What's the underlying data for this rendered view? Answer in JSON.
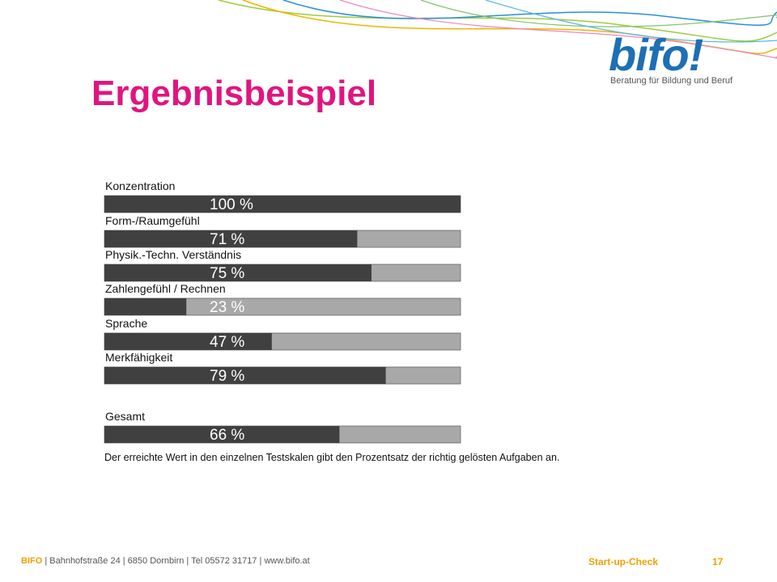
{
  "slide": {
    "title": "Ergebnisbeispiel",
    "title_color": "#e0157f"
  },
  "logo": {
    "word": "bifo!",
    "tagline": "Beratung für Bildung und Beruf",
    "color": "#1e6fb5"
  },
  "chart_data": {
    "type": "bar",
    "orientation": "horizontal",
    "categories": [
      "Konzentration",
      "Form-/Raumgefühl",
      "Physik.-Techn. Verständnis",
      "Zahlengefühl / Rechnen",
      "Sprache",
      "Merkfähigkeit",
      "Gesamt"
    ],
    "values": [
      100,
      71,
      75,
      23,
      47,
      79,
      66
    ],
    "value_labels": [
      "100 %",
      "71 %",
      "75 %",
      "23 %",
      "47 %",
      "79 %",
      "66 %"
    ],
    "xlim": [
      0,
      100
    ],
    "note": "Der erreichte Wert in den einzelnen Testskalen gibt den Prozentsatz der richtig gelösten Aufgaben an.",
    "bar_color": "#404040",
    "track_color": "#a8a8a8"
  },
  "footer": {
    "org": "BIFO",
    "address": " | Bahnhofstraße 24 | 6850 Dornbirn | Tel 05572 31717 | www.bifo.at",
    "doc": "Start-up-Check",
    "page": "17",
    "accent": "#f0a000"
  }
}
